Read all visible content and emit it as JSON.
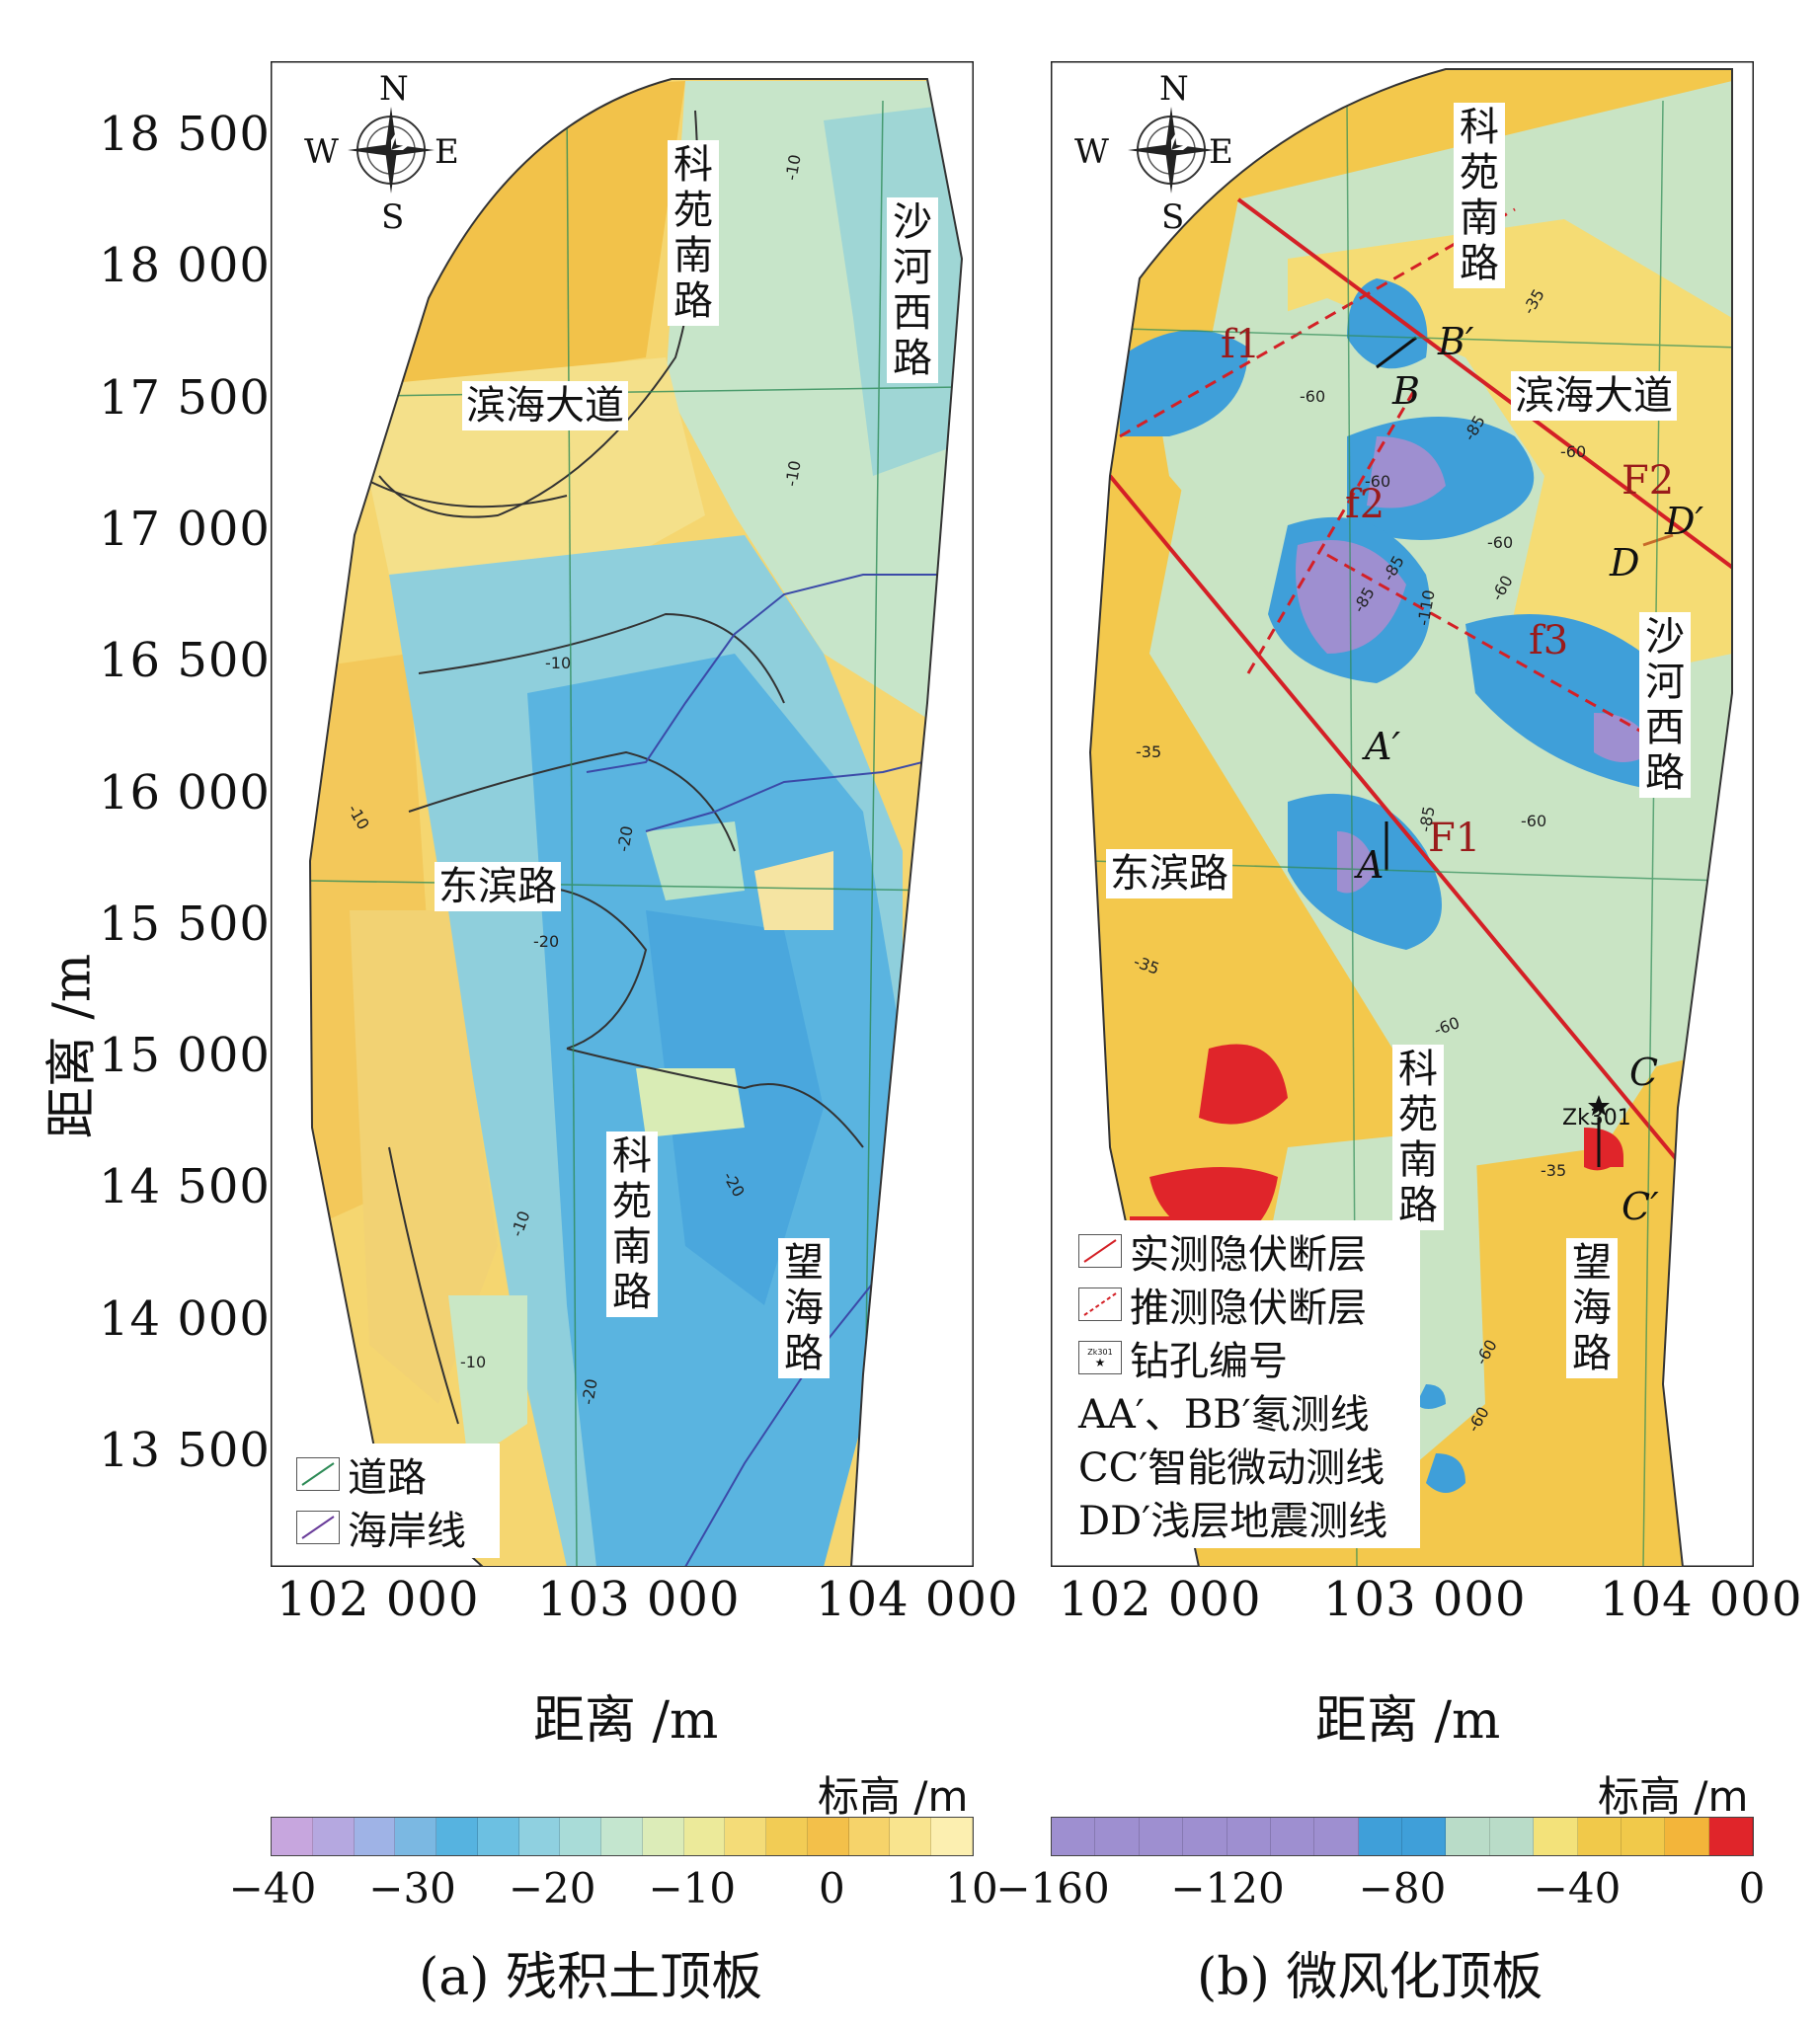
{
  "y_axis": {
    "title": "距离 /m",
    "ticks": [
      "18 500",
      "18 000",
      "17 500",
      "17 000",
      "16 500",
      "16 000",
      "15 500",
      "15 000",
      "14 500",
      "14 000",
      "13 500"
    ]
  },
  "panel_a": {
    "x_ticks": [
      "102 000",
      "103 000",
      "104 000"
    ],
    "x_title": "距离 /m",
    "caption": "(a) 残积土顶板",
    "compass": {
      "n": "N",
      "s": "S",
      "w": "W",
      "e": "E"
    },
    "roads": {
      "keyuan_north": "科苑南路",
      "shahe": "沙河西路",
      "binhai": "滨海大道",
      "dongbin": "东滨路",
      "keyuan_south": "科苑南路",
      "wanghai": "望海路"
    },
    "contour_labels": [
      "-10",
      "-10",
      "-10",
      "-20",
      "-20",
      "-20",
      "-10",
      "-20",
      "-10",
      "-10"
    ],
    "legend": [
      {
        "label": "道路",
        "icon": "road-line-icon",
        "color": "#2e8b57"
      },
      {
        "label": "海岸线",
        "icon": "coastline-icon",
        "color": "#6a3d9a"
      }
    ],
    "colorbar": {
      "title": "标高 /m",
      "ticks": [
        "−40",
        "−30",
        "−20",
        "−10",
        "0",
        "10"
      ],
      "colors": [
        "#c7a6de",
        "#b5a8e0",
        "#9fb3e6",
        "#7bb8e2",
        "#56b3e0",
        "#6cc0e2",
        "#8fd0e0",
        "#a9dcd8",
        "#c4e6cf",
        "#dcecb8",
        "#ecea9a",
        "#f4dc78",
        "#f2cc55",
        "#f3c04a",
        "#f6d36a",
        "#f9e48e",
        "#fcefb0"
      ]
    }
  },
  "panel_b": {
    "x_ticks": [
      "102 000",
      "103 000",
      "104 000"
    ],
    "x_title": "距离 /m",
    "caption": "(b) 微风化顶板",
    "compass": {
      "n": "N",
      "s": "S",
      "w": "W",
      "e": "E"
    },
    "roads": {
      "keyuan_north": "科苑南路",
      "binhai": "滨海大道",
      "shahe": "沙河西路",
      "dongbin": "东滨路",
      "keyuan_south": "科苑南路",
      "wanghai": "望海路"
    },
    "faults": {
      "f1": "f1",
      "f2": "f2",
      "f3": "f3",
      "F1": "F1",
      "F2": "F2"
    },
    "survey_lines": {
      "A": "A",
      "A_prime": "A′",
      "B": "B",
      "B_prime": "B′",
      "C": "C",
      "C_prime": "C′",
      "D": "D",
      "D_prime": "D′"
    },
    "borehole": "Zk301",
    "contour_labels": [
      "-60",
      "-35",
      "-60",
      "-85",
      "-60",
      "-60",
      "-85",
      "-110",
      "-60",
      "-85",
      "-60",
      "-35",
      "-85",
      "-35",
      "-60",
      "-35",
      "-60",
      "-60"
    ],
    "legend": [
      {
        "label": "实测隐伏断层",
        "icon": "measured-fault-icon"
      },
      {
        "label": "推测隐伏断层",
        "icon": "inferred-fault-icon"
      },
      {
        "label": "钻孔编号",
        "icon": "borehole-icon",
        "icon_text": "Zk301"
      }
    ],
    "line_legend": [
      "AA′、BB′氡测线",
      "CC′智能微动测线",
      "DD′浅层地震测线"
    ],
    "colorbar": {
      "title": "标高 /m",
      "ticks": [
        "−160",
        "−120",
        "−80",
        "−40",
        "0"
      ],
      "colors": [
        "#9e8fd0",
        "#9e8fd0",
        "#9e8fd0",
        "#9e8fd0",
        "#9e8fd0",
        "#9e8fd0",
        "#9e8fd0",
        "#3f9fd9",
        "#3f9fd9",
        "#b9dcc8",
        "#b9dcc8",
        "#f3e27a",
        "#f1c94a",
        "#f1c94a",
        "#f3b53a",
        "#e0252a"
      ]
    }
  }
}
